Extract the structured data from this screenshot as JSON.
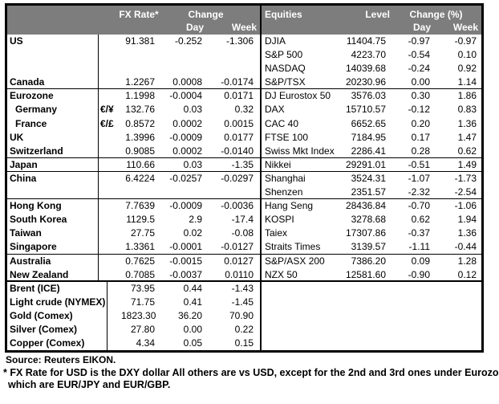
{
  "colors": {
    "header_bg": "#7d7d7d",
    "header_text": "#ffffff",
    "border": "#000000",
    "background": "#ffffff"
  },
  "fx_table": {
    "header": {
      "col_rate": "FX Rate*",
      "col_change": "Change",
      "col_day": "Day",
      "col_week": "Week"
    },
    "rows": [
      {
        "label": "US",
        "sym": "",
        "rate": "91.381",
        "day": "-0.252",
        "week": "-1.306",
        "cls": ""
      },
      {
        "label": "",
        "sym": "",
        "rate": "",
        "day": "",
        "week": "",
        "cls": ""
      },
      {
        "label": "",
        "sym": "",
        "rate": "",
        "day": "",
        "week": "",
        "cls": ""
      },
      {
        "label": "Canada",
        "sym": "",
        "rate": "1.2267",
        "day": "0.0008",
        "week": "-0.0174",
        "cls": "sec"
      },
      {
        "label": "Eurozone",
        "sym": "",
        "rate": "1.1998",
        "day": "-0.0004",
        "week": "0.0171",
        "cls": ""
      },
      {
        "label": "Germany",
        "sym": "€/¥",
        "rate": "132.76",
        "day": "0.03",
        "week": "0.32",
        "cls": "indent"
      },
      {
        "label": "France",
        "sym": "€/£",
        "rate": "0.8572",
        "day": "0.0002",
        "week": "0.0015",
        "cls": "indent"
      },
      {
        "label": "UK",
        "sym": "",
        "rate": "1.3996",
        "day": "-0.0009",
        "week": "0.0177",
        "cls": ""
      },
      {
        "label": "Switzerland",
        "sym": "",
        "rate": "0.9085",
        "day": "0.0002",
        "week": "-0.0140",
        "cls": "sec"
      },
      {
        "label": "Japan",
        "sym": "",
        "rate": "110.66",
        "day": "0.03",
        "week": "-1.35",
        "cls": "sec"
      },
      {
        "label": "China",
        "sym": "",
        "rate": "6.4224",
        "day": "-0.0257",
        "week": "-0.0297",
        "cls": ""
      },
      {
        "label": "",
        "sym": "",
        "rate": "",
        "day": "",
        "week": "",
        "cls": "sec"
      },
      {
        "label": "Hong Kong",
        "sym": "",
        "rate": "7.7639",
        "day": "-0.0009",
        "week": "-0.0036",
        "cls": ""
      },
      {
        "label": "South Korea",
        "sym": "",
        "rate": "1129.5",
        "day": "2.9",
        "week": "-17.4",
        "cls": ""
      },
      {
        "label": "Taiwan",
        "sym": "",
        "rate": "27.75",
        "day": "0.02",
        "week": "-0.08",
        "cls": ""
      },
      {
        "label": "Singapore",
        "sym": "",
        "rate": "1.3361",
        "day": "-0.0001",
        "week": "-0.0127",
        "cls": "sec"
      },
      {
        "label": "Australia",
        "sym": "",
        "rate": "0.7625",
        "day": "-0.0015",
        "week": "0.0127",
        "cls": ""
      },
      {
        "label": "New Zealand",
        "sym": "",
        "rate": "0.7085",
        "day": "-0.0037",
        "week": "0.0110",
        "cls": "sec2"
      },
      {
        "label": "Brent (ICE)",
        "sym": "",
        "rate": "73.95",
        "day": "0.44",
        "week": "-1.43",
        "cls": ""
      },
      {
        "label": "Light crude (NYMEX)",
        "sym": "",
        "rate": "71.75",
        "day": "0.41",
        "week": "-1.45",
        "cls": ""
      },
      {
        "label": "Gold (Comex)",
        "sym": "",
        "rate": "1823.30",
        "day": "36.20",
        "week": "70.90",
        "cls": ""
      },
      {
        "label": "Silver (Comex)",
        "sym": "",
        "rate": "27.80",
        "day": "0.00",
        "week": "0.22",
        "cls": ""
      },
      {
        "label": "Copper (Comex)",
        "sym": "",
        "rate": "4.34",
        "day": "0.05",
        "week": "0.15",
        "cls": ""
      }
    ]
  },
  "eq_table": {
    "header": {
      "col_name": "Equities",
      "col_level": "Level",
      "col_change": "Change (%)",
      "col_day": "Day",
      "col_week": "Week"
    },
    "rows": [
      {
        "label": "DJIA",
        "level": "11404.75",
        "day": "-0.97",
        "week": "-0.97",
        "cls": ""
      },
      {
        "label": "S&P 500",
        "level": "4223.70",
        "day": "-0.54",
        "week": "0.10",
        "cls": ""
      },
      {
        "label": "NASDAQ",
        "level": "14039.68",
        "day": "-0.24",
        "week": "0.92",
        "cls": ""
      },
      {
        "label": "S&P/TSX",
        "level": "20230.96",
        "day": "0.00",
        "week": "1.14",
        "cls": "sec"
      },
      {
        "label": "DJ Eurostox 50",
        "level": "3576.03",
        "day": "0.30",
        "week": "1.86",
        "cls": ""
      },
      {
        "label": "DAX",
        "level": "15710.57",
        "day": "-0.12",
        "week": "0.83",
        "cls": ""
      },
      {
        "label": "CAC 40",
        "level": "6652.65",
        "day": "0.20",
        "week": "1.36",
        "cls": ""
      },
      {
        "label": "FTSE 100",
        "level": "7184.95",
        "day": "0.17",
        "week": "1.47",
        "cls": ""
      },
      {
        "label": "Swiss Mkt Index",
        "level": "2286.41",
        "day": "0.28",
        "week": "0.62",
        "cls": "sec"
      },
      {
        "label": "Nikkei",
        "level": "29291.01",
        "day": "-0.51",
        "week": "1.49",
        "cls": "sec"
      },
      {
        "label": "Shanghai",
        "level": "3524.31",
        "day": "-1.07",
        "week": "-1.73",
        "cls": ""
      },
      {
        "label": "Shenzen",
        "level": "2351.57",
        "day": "-2.32",
        "week": "-2.54",
        "cls": "sec"
      },
      {
        "label": "Hang Seng",
        "level": "28436.84",
        "day": "-0.70",
        "week": "-1.06",
        "cls": ""
      },
      {
        "label": "KOSPI",
        "level": "3278.68",
        "day": "0.62",
        "week": "1.94",
        "cls": ""
      },
      {
        "label": "Taiex",
        "level": "17307.86",
        "day": "-0.37",
        "week": "1.36",
        "cls": ""
      },
      {
        "label": "Straits Times",
        "level": "3139.57",
        "day": "-1.11",
        "week": "-0.44",
        "cls": "sec"
      },
      {
        "label": "S&P/ASX  200",
        "level": "7386.20",
        "day": "0.09",
        "week": "1.28",
        "cls": ""
      },
      {
        "label": "NZX 50",
        "level": "12581.60",
        "day": "-0.90",
        "week": "0.12",
        "cls": "sec2"
      },
      {
        "label": "",
        "level": "",
        "day": "",
        "week": "",
        "cls": ""
      },
      {
        "label": "",
        "level": "",
        "day": "",
        "week": "",
        "cls": ""
      },
      {
        "label": "",
        "level": "",
        "day": "",
        "week": "",
        "cls": ""
      },
      {
        "label": "",
        "level": "",
        "day": "",
        "week": "",
        "cls": ""
      },
      {
        "label": "",
        "level": "",
        "day": "",
        "week": "",
        "cls": ""
      }
    ]
  },
  "footer": {
    "source": "Source:  Reuters EIKON.",
    "footnote_line1": "* FX Rate for USD is the DXY dollar  All others are vs USD, except for the 2nd and 3rd ones under Eurozone,",
    "footnote_line2": "which are EUR/JPY and EUR/GBP."
  }
}
